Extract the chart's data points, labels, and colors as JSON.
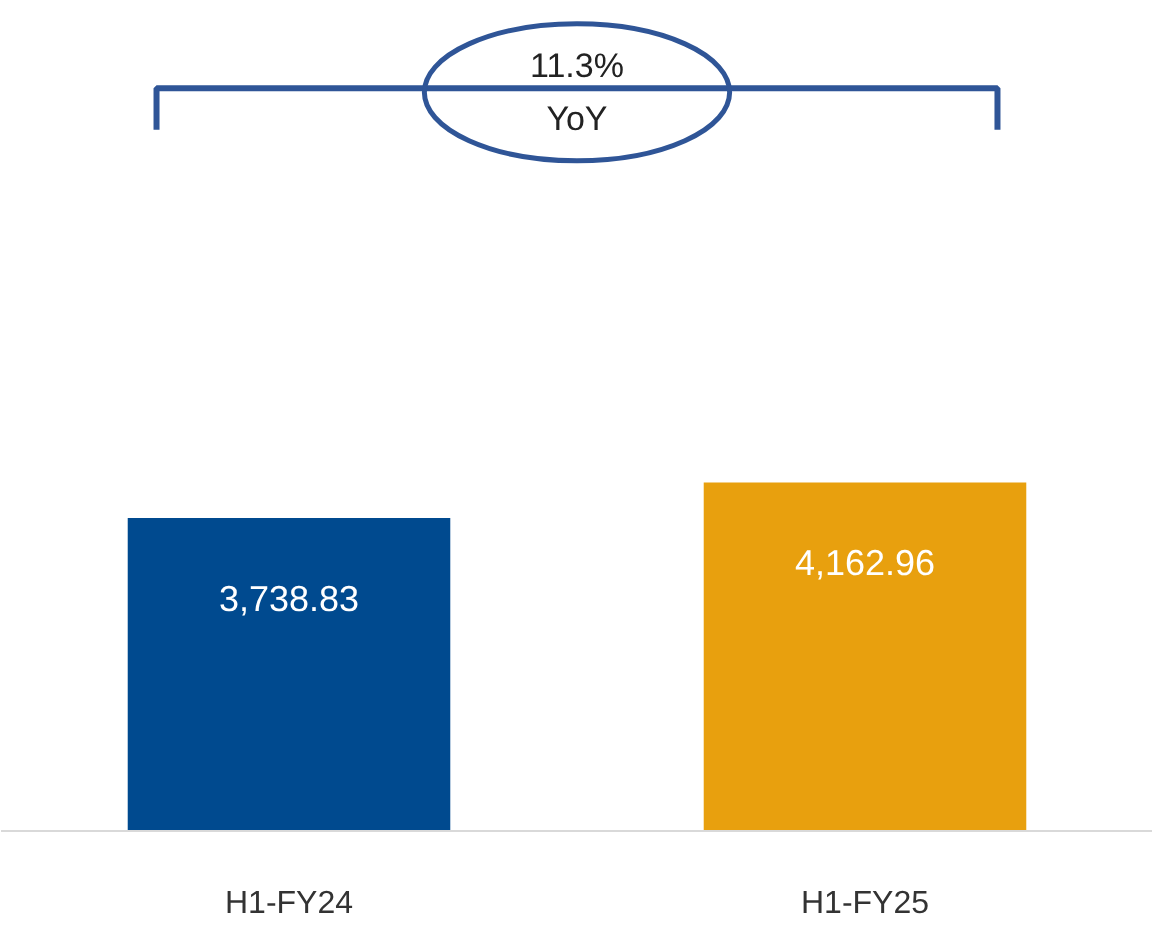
{
  "chart_data": {
    "type": "bar",
    "categories": [
      "H1-FY24",
      "H1-FY25"
    ],
    "values": [
      3738.83,
      4162.96
    ],
    "colors": [
      "#004a8f",
      "#e8a00e"
    ],
    "value_labels": [
      "3,738.83",
      "4,162.96"
    ],
    "grid": false,
    "tick_labels": "x",
    "annotations": [
      "11.3%\nYoY"
    ]
  }
}
